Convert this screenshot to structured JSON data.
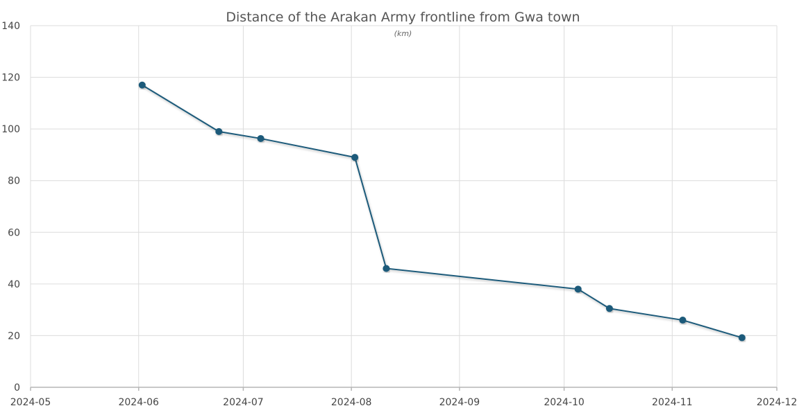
{
  "chart_data": {
    "type": "line",
    "title": "Distance of the Arakan Army frontline from Gwa town",
    "subtitle": "(km)",
    "xlabel": "",
    "ylabel": "",
    "x_axis": {
      "type": "date",
      "range": [
        "2024-05-01",
        "2024-12-01"
      ],
      "ticks": [
        "2024-05",
        "2024-06",
        "2024-07",
        "2024-08",
        "2024-09",
        "2024-10",
        "2024-11",
        "2024-12"
      ]
    },
    "y_axis": {
      "range": [
        0,
        140
      ],
      "ticks": [
        0,
        20,
        40,
        60,
        80,
        100,
        120,
        140
      ]
    },
    "grid": true,
    "legend": "none",
    "series": [
      {
        "color": "#1a5a7a",
        "points": [
          {
            "x": "2024-06-02",
            "y": 117
          },
          {
            "x": "2024-06-24",
            "y": 99
          },
          {
            "x": "2024-07-06",
            "y": 96.3
          },
          {
            "x": "2024-08-02",
            "y": 89
          },
          {
            "x": "2024-08-11",
            "y": 46
          },
          {
            "x": "2024-10-05",
            "y": 38
          },
          {
            "x": "2024-10-14",
            "y": 30.5
          },
          {
            "x": "2024-11-04",
            "y": 26
          },
          {
            "x": "2024-11-21",
            "y": 19.2
          }
        ]
      }
    ]
  }
}
